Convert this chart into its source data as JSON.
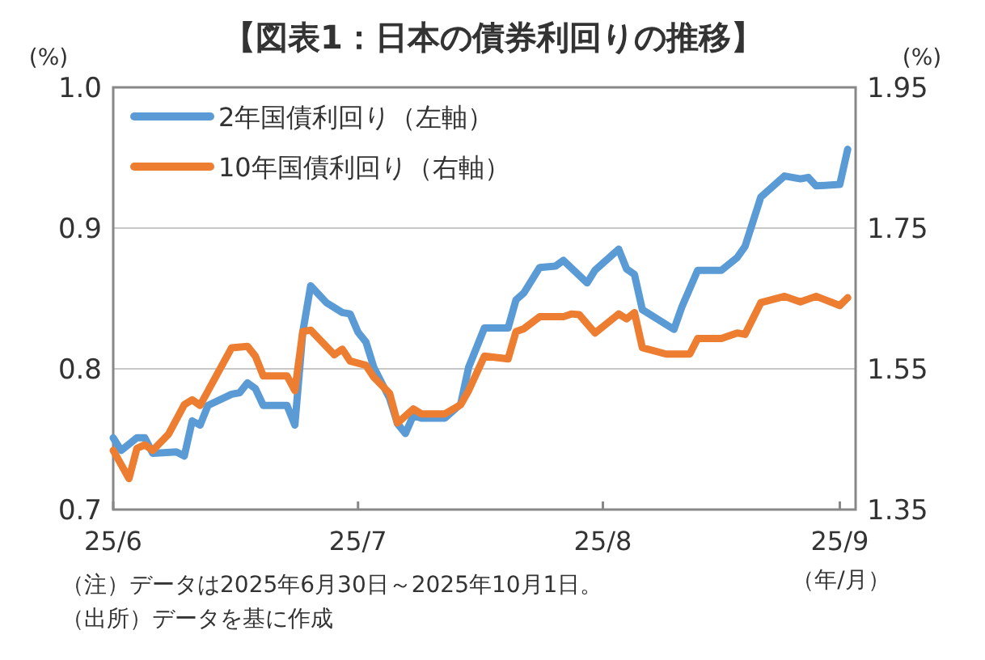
{
  "chart_data": {
    "type": "line",
    "title": "【図表1：日本の債券利回りの推移】",
    "xlabel": "（年/月）",
    "ylabel": "(%)",
    "y2label": "(%)",
    "xlim": [
      "2025-06-30",
      "2025-10-02"
    ],
    "xticks": [
      {
        "value": "2025-06-30",
        "label": "25/6"
      },
      {
        "value": "2025-07-31",
        "label": "25/7"
      },
      {
        "value": "2025-08-31",
        "label": "25/8"
      },
      {
        "value": "2025-09-30",
        "label": "25/9"
      }
    ],
    "ylim": [
      0.7,
      1.0
    ],
    "yticks": [
      0.7,
      0.8,
      0.9,
      {
        "value": 1.0,
        "label": "1.0"
      }
    ],
    "y2lim": [
      1.35,
      1.95
    ],
    "y2ticks": [
      1.35,
      1.55,
      1.75,
      1.95
    ],
    "grid": "y",
    "legend": "top left",
    "line_style": "solid",
    "marker": "none",
    "series": [
      {
        "name": "2年国債利回り（左軸）",
        "color": "#5b9bd5",
        "x": [
          "2025-06-30",
          "2025-07-01",
          "2025-07-03",
          "2025-07-04",
          "2025-07-05",
          "2025-07-08",
          "2025-07-09",
          "2025-07-10",
          "2025-07-11",
          "2025-07-12",
          "2025-07-15",
          "2025-07-16",
          "2025-07-17",
          "2025-07-18",
          "2025-07-19",
          "2025-07-22",
          "2025-07-23",
          "2025-07-24",
          "2025-07-25",
          "2025-07-27",
          "2025-07-29",
          "2025-07-30",
          "2025-07-31",
          "2025-08-01",
          "2025-08-02",
          "2025-08-04",
          "2025-08-05",
          "2025-08-06",
          "2025-08-07",
          "2025-08-08",
          "2025-08-11",
          "2025-08-13",
          "2025-08-14",
          "2025-08-16",
          "2025-08-19",
          "2025-08-20",
          "2025-08-21",
          "2025-08-23",
          "2025-08-25",
          "2025-08-26",
          "2025-08-29",
          "2025-08-30",
          "2025-09-02",
          "2025-09-03",
          "2025-09-04",
          "2025-09-05",
          "2025-09-09",
          "2025-09-10",
          "2025-09-12",
          "2025-09-15",
          "2025-09-17",
          "2025-09-18",
          "2025-09-20",
          "2025-09-23",
          "2025-09-25",
          "2025-09-26",
          "2025-09-27",
          "2025-09-30",
          "2025-10-01"
        ],
        "values": [
          0.751,
          0.742,
          0.751,
          0.751,
          0.74,
          0.741,
          0.738,
          0.763,
          0.76,
          0.774,
          0.782,
          0.783,
          0.79,
          0.786,
          0.774,
          0.774,
          0.76,
          0.826,
          0.859,
          0.847,
          0.84,
          0.839,
          0.826,
          0.819,
          0.801,
          0.779,
          0.761,
          0.754,
          0.767,
          0.765,
          0.765,
          0.775,
          0.801,
          0.829,
          0.829,
          0.849,
          0.854,
          0.872,
          0.873,
          0.877,
          0.861,
          0.87,
          0.885,
          0.871,
          0.867,
          0.842,
          0.828,
          0.844,
          0.87,
          0.87,
          0.879,
          0.887,
          0.922,
          0.937,
          0.935,
          0.936,
          0.93,
          0.931,
          0.956
        ]
      },
      {
        "name": "10年国債利回り（右軸）",
        "color": "#ed7d31",
        "axis": "y2",
        "x": [
          "2025-06-30",
          "2025-07-02",
          "2025-07-03",
          "2025-07-04",
          "2025-07-05",
          "2025-07-07",
          "2025-07-09",
          "2025-07-10",
          "2025-07-11",
          "2025-07-15",
          "2025-07-17",
          "2025-07-18",
          "2025-07-19",
          "2025-07-22",
          "2025-07-23",
          "2025-07-24",
          "2025-07-25",
          "2025-07-28",
          "2025-07-29",
          "2025-07-30",
          "2025-08-01",
          "2025-08-02",
          "2025-08-04",
          "2025-08-05",
          "2025-08-07",
          "2025-08-08",
          "2025-08-11",
          "2025-08-13",
          "2025-08-14",
          "2025-08-16",
          "2025-08-19",
          "2025-08-20",
          "2025-08-21",
          "2025-08-23",
          "2025-08-26",
          "2025-08-27",
          "2025-08-28",
          "2025-08-30",
          "2025-09-02",
          "2025-09-03",
          "2025-09-04",
          "2025-09-05",
          "2025-09-08",
          "2025-09-11",
          "2025-09-12",
          "2025-09-15",
          "2025-09-17",
          "2025-09-18",
          "2025-09-20",
          "2025-09-23",
          "2025-09-25",
          "2025-09-27",
          "2025-09-30",
          "2025-10-01"
        ],
        "values": [
          1.434,
          1.394,
          1.437,
          1.442,
          1.434,
          1.457,
          1.499,
          1.506,
          1.498,
          1.58,
          1.582,
          1.568,
          1.54,
          1.54,
          1.519,
          1.603,
          1.605,
          1.57,
          1.578,
          1.561,
          1.555,
          1.538,
          1.515,
          1.473,
          1.493,
          1.486,
          1.486,
          1.499,
          1.519,
          1.568,
          1.564,
          1.603,
          1.607,
          1.624,
          1.624,
          1.628,
          1.627,
          1.601,
          1.628,
          1.621,
          1.63,
          1.58,
          1.571,
          1.571,
          1.593,
          1.593,
          1.601,
          1.599,
          1.644,
          1.653,
          1.645,
          1.653,
          1.64,
          1.651
        ]
      }
    ],
    "annotations": [
      "（注）データは2025年6月30日～2025年10月1日。",
      "（出所）データを基に作成"
    ]
  }
}
